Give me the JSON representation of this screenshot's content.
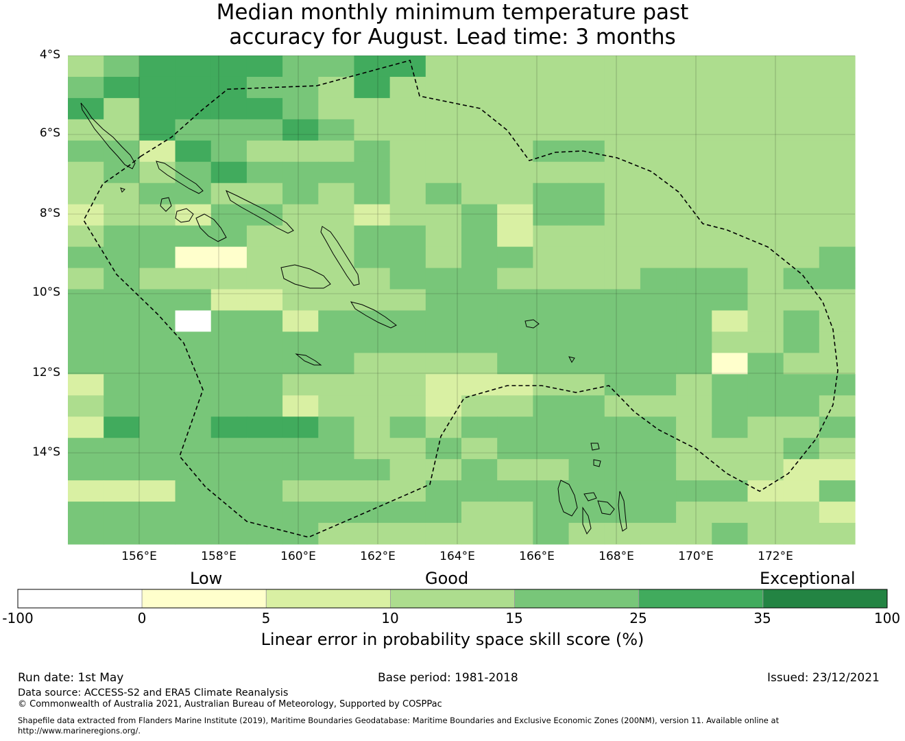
{
  "title": {
    "line1": "Median monthly minimum temperature past",
    "line2": "accuracy for August. Lead time: 3 months"
  },
  "map": {
    "lat_labels": [
      "4°S",
      "6°S",
      "8°S",
      "10°S",
      "12°S",
      "14°S"
    ],
    "lon_labels": [
      "156°E",
      "158°E",
      "160°E",
      "162°E",
      "164°E",
      "166°E",
      "168°E",
      "170°E",
      "172°E"
    ],
    "eez_boundary_style": "dashed",
    "coastline_color": "#000000",
    "grid": [
      "3455554455333333333333",
      "4555544353333333333333",
      "5355554333333333333333",
      "3354445433333333333333",
      "4425433343333443333333",
      "3434544443333333333333",
      "3344334343433443333333",
      "2332443323342443333333",
      "3444433344342333333333",
      "4441133344344333333334",
      "3433333334443333444344",
      "4444223333444444444333",
      "4440442444444444442343",
      "4444444444444444443343",
      "4444444433334444441433",
      "2444443333222334434444",
      "3444442333233443334443",
      "2544555434344444434334",
      "4444444433434444433343",
      "4444444443343344433322",
      "2224443333444444444224",
      "4444444444433444433332",
      "4444444333333433334333"
    ]
  },
  "legend": {
    "categories": [
      "Low",
      "Good",
      "Exceptional"
    ],
    "ticks": [
      "-100",
      "0",
      "5",
      "10",
      "15",
      "25",
      "35",
      "100"
    ],
    "colors": [
      "#ffffff",
      "#ffffcc",
      "#d9f0a3",
      "#addd8e",
      "#78c679",
      "#41ab5d",
      "#238443"
    ],
    "label": "Linear error in probability space skill score (%)"
  },
  "footer": {
    "run_date": "Run date: 1st May",
    "base_period": "Base period: 1981-2018",
    "issued": "Issued: 23/12/2021",
    "data_source": "Data source: ACCESS-S2 and ERA5 Climate Reanalysis",
    "copyright": "© Commonwealth of Australia 2021, Australian Bureau of Meteorology, Supported by COSPPac",
    "shapefile_line1": "Shapefile data extracted from Flanders Marine Institute (2019), Maritime Boundaries Geodatabase: Maritime Boundaries and Exclusive Economic Zones (200NM), version 11. Available online at",
    "shapefile_line2": "http://www.marineregions.org/."
  }
}
